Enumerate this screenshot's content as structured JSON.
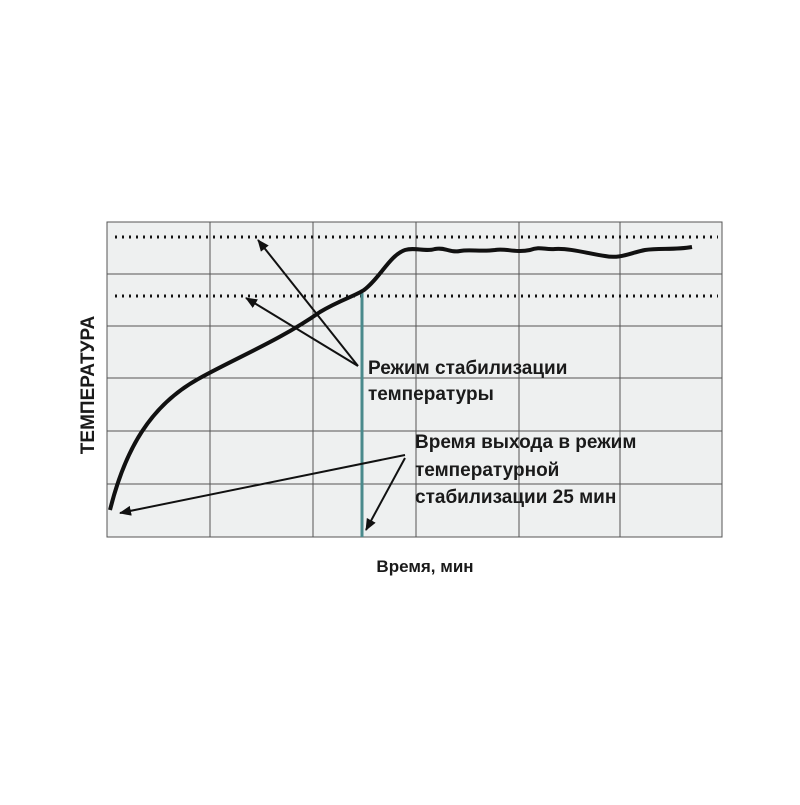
{
  "axes": {
    "y_label": "ТЕМПЕРАТУРА",
    "x_label": "Время,  мин"
  },
  "annotations": [
    {
      "lines": [
        "Режим  стабилизации",
        "температуры"
      ]
    },
    {
      "lines": [
        "Время выхода в режим",
        "температурной",
        "стабилизации 25 мин"
      ]
    }
  ]
}
